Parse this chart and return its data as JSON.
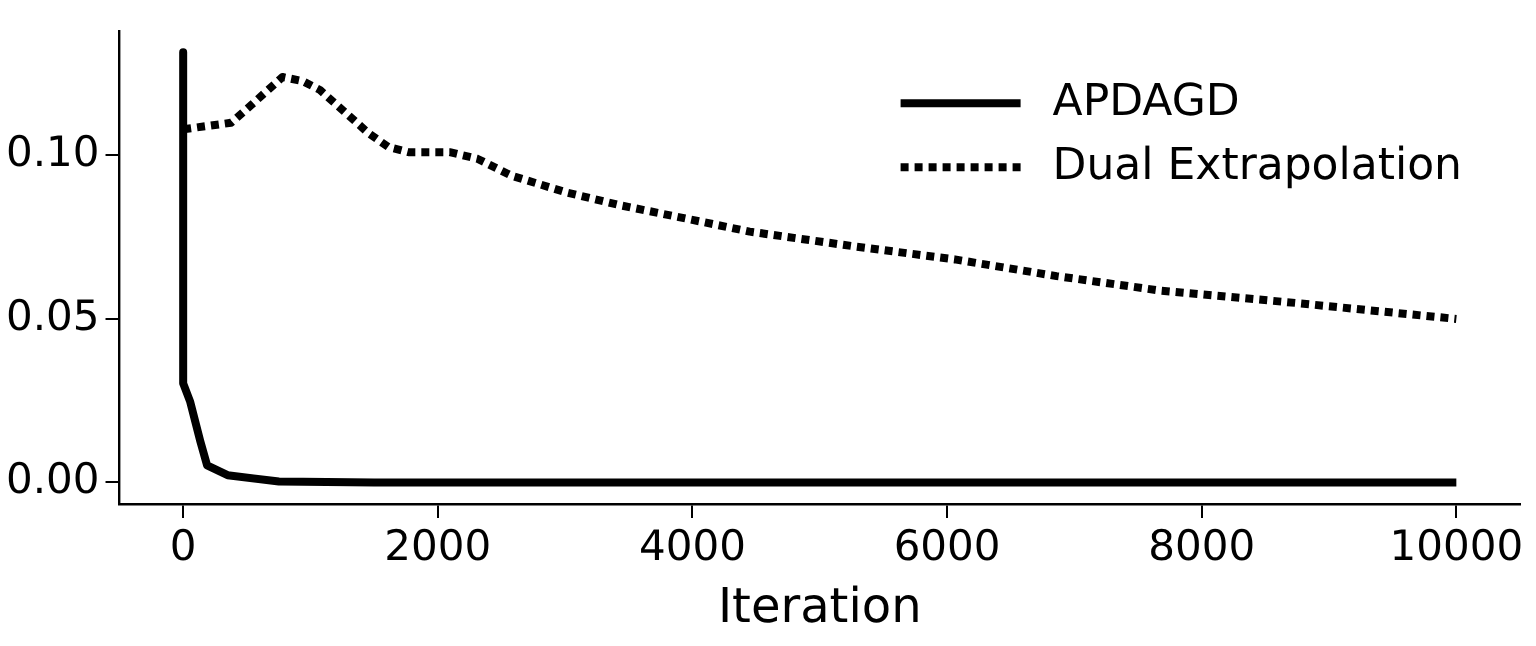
{
  "chart_data": {
    "type": "line",
    "xlabel": "Iteration",
    "xlim": [
      -500,
      10500
    ],
    "ylim": [
      -0.0066,
      0.138
    ],
    "xticks": [
      0,
      2000,
      4000,
      6000,
      8000,
      10000
    ],
    "yticks": [
      {
        "value": 0,
        "label": "0.00"
      },
      {
        "value": 0.05,
        "label": "0.05"
      },
      {
        "value": 0.1,
        "label": "0.10"
      }
    ],
    "grid": false,
    "legend": "top right",
    "marker": "none",
    "series": [
      {
        "name": "APDAGD",
        "color": "#000000",
        "line_style": "solid",
        "x": [
          0,
          0,
          54,
          134,
          188,
          349,
          752,
          1500,
          10000
        ],
        "values": [
          0.1316,
          0.0303,
          0.0248,
          0.0127,
          0.0052,
          0.0022,
          0.0003,
          0,
          0
        ]
      },
      {
        "name": "Dual Extrapolation",
        "color": "#000000",
        "line_style": "dotted",
        "x": [
          0,
          376,
          537,
          780,
          940,
          1075,
          1260,
          1450,
          1610,
          1770,
          2094,
          2310,
          2580,
          3010,
          3440,
          3975,
          4449,
          5252,
          6061,
          6860,
          7669,
          8736,
          10000
        ],
        "values": [
          0.108,
          0.11,
          0.1155,
          0.124,
          0.1227,
          0.12,
          0.1136,
          0.107,
          0.1026,
          0.101,
          0.101,
          0.099,
          0.0938,
          0.0887,
          0.0847,
          0.0805,
          0.0767,
          0.0723,
          0.0682,
          0.0631,
          0.0587,
          0.0549,
          0.05
        ]
      }
    ]
  }
}
